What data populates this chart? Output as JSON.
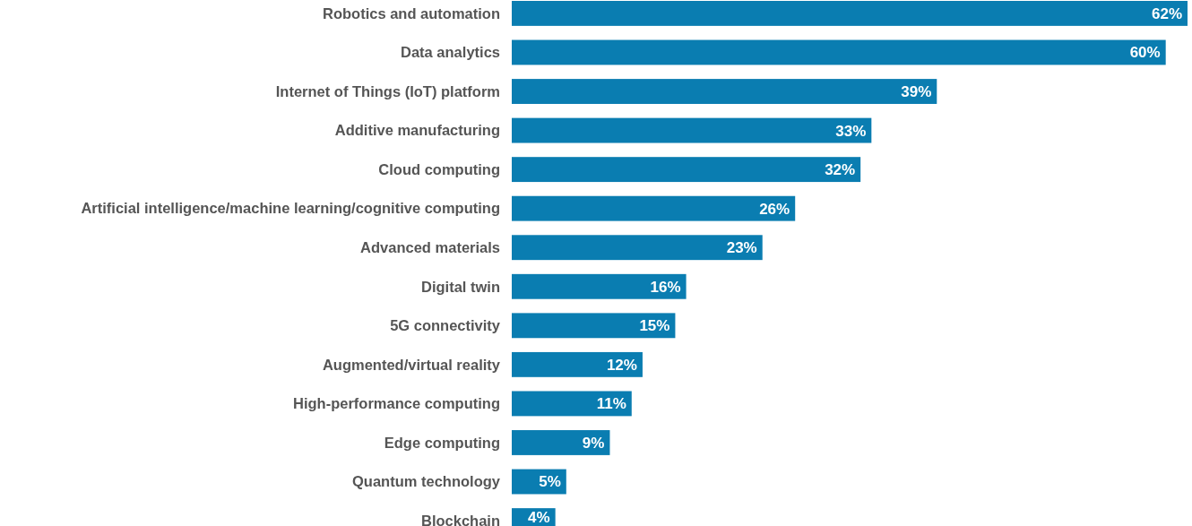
{
  "chart_data": {
    "type": "bar",
    "orientation": "horizontal",
    "color": "#0a7db1",
    "categories": [
      "Robotics and automation",
      "Data analytics",
      "Internet of Things (IoT) platform",
      "Additive manufacturing",
      "Cloud computing",
      "Artificial intelligence/machine learning/cognitive computing",
      "Advanced materials",
      "Digital twin",
      "5G connectivity",
      "Augmented/virtual reality",
      "High-performance computing",
      "Edge computing",
      "Quantum technology",
      "Blockchain"
    ],
    "values": [
      62,
      60,
      39,
      33,
      32,
      26,
      23,
      16,
      15,
      12,
      11,
      9,
      5,
      4
    ],
    "value_labels": [
      "62%",
      "60%",
      "39%",
      "33%",
      "32%",
      "26%",
      "23%",
      "16%",
      "15%",
      "12%",
      "11%",
      "9%",
      "5%",
      "4%"
    ]
  }
}
